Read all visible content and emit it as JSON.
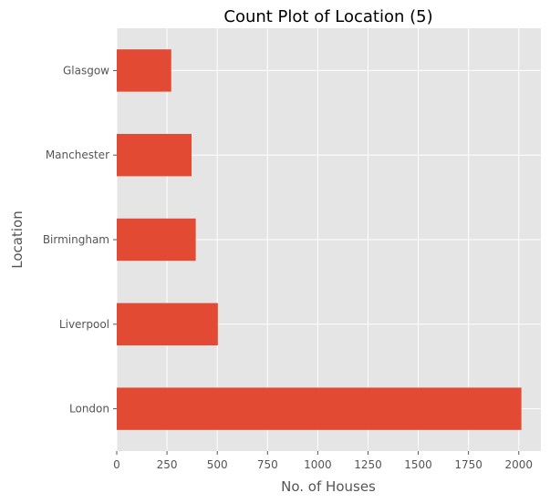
{
  "chart_data": {
    "type": "bar",
    "orientation": "horizontal",
    "title": "Count Plot of Location (5)",
    "xlabel": "No. of Houses",
    "ylabel": "Location",
    "categories": [
      "London",
      "Liverpool",
      "Birmingham",
      "Manchester",
      "Glasgow"
    ],
    "values": [
      2013,
      503,
      393,
      372,
      271
    ],
    "xlim": [
      0,
      2110
    ],
    "xticks": [
      0,
      250,
      500,
      750,
      1000,
      1250,
      1500,
      1750,
      2000
    ],
    "grid": true,
    "bar_color": "#E24A33",
    "background_color": "#E5E5E5",
    "grid_color": "#FFFFFF"
  }
}
